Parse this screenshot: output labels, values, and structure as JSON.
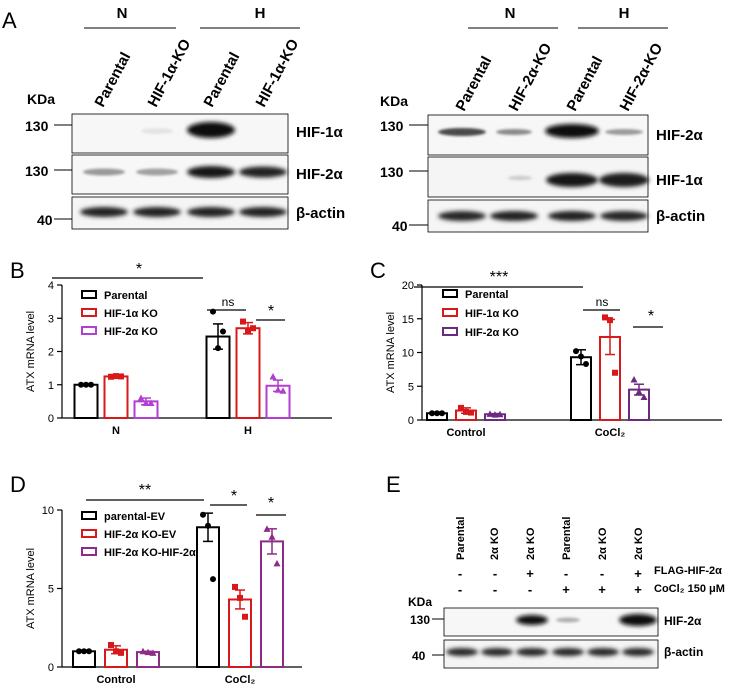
{
  "panel_a": {
    "letter": "A",
    "left": {
      "groups": [
        "N",
        "H"
      ],
      "lanes": [
        "Parental",
        "HIF-1α-KO",
        "Parental",
        "HIF-1α-KO"
      ],
      "kda_label": "KDa",
      "blots": [
        {
          "marker": "130",
          "label": "HIF-1α"
        },
        {
          "marker": "130",
          "label": "HIF-2α"
        },
        {
          "marker": "40",
          "label": "β-actin"
        }
      ]
    },
    "right": {
      "groups": [
        "N",
        "H"
      ],
      "lanes": [
        "Parental",
        "HIF-2α-KO",
        "Parental",
        "HIF-2α-KO"
      ],
      "kda_label": "KDa",
      "blots": [
        {
          "marker": "130",
          "label": "HIF-2α"
        },
        {
          "marker": "130",
          "label": "HIF-1α"
        },
        {
          "marker": "40",
          "label": "β-actin"
        }
      ]
    }
  },
  "chart_data": [
    {
      "panel": "B",
      "type": "bar",
      "ylabel": "ATX mRNA level",
      "ylim": [
        0,
        4
      ],
      "yticks": [
        "0",
        "1",
        "2",
        "3",
        "4"
      ],
      "groups": [
        "N",
        "H"
      ],
      "series": [
        {
          "name": "Parental",
          "color": "#000000",
          "values": [
            1.0,
            2.45
          ],
          "errors": [
            0.02,
            0.38
          ],
          "points": [
            [
              1.0,
              1.0,
              1.0
            ],
            [
              3.2,
              2.1,
              2.6
            ]
          ]
        },
        {
          "name": "HIF-1α KO",
          "color": "#d7191c",
          "values": [
            1.25,
            2.7
          ],
          "errors": [
            0.03,
            0.17
          ],
          "points": [
            [
              1.24,
              1.26,
              1.25
            ],
            [
              2.9,
              2.6,
              2.7
            ]
          ]
        },
        {
          "name": "HIF-2α KO",
          "color": "#b23fd1",
          "values": [
            0.5,
            0.97
          ],
          "errors": [
            0.1,
            0.17
          ],
          "points": [
            [
              0.6,
              0.45,
              0.45
            ],
            [
              1.25,
              0.85,
              0.82
            ]
          ]
        }
      ],
      "significance": [
        {
          "text": "*"
        },
        {
          "text": "ns"
        },
        {
          "text": "*"
        }
      ]
    },
    {
      "panel": "C",
      "type": "bar",
      "ylabel": "ATX mRNA level",
      "ylim": [
        0,
        20
      ],
      "yticks": [
        "0",
        "5",
        "10",
        "15",
        "20"
      ],
      "groups": [
        "Control",
        "CoCl₂"
      ],
      "series": [
        {
          "name": "Parental",
          "color": "#000000",
          "values": [
            1.0,
            9.3
          ],
          "errors": [
            0.05,
            1.1
          ],
          "points": [
            [
              1.0,
              1.0,
              1.0
            ],
            [
              10.2,
              9.4,
              8.3
            ]
          ]
        },
        {
          "name": "HIF-1α KO",
          "color": "#d7191c",
          "values": [
            1.4,
            12.3
          ],
          "errors": [
            0.4,
            2.6
          ],
          "points": [
            [
              1.8,
              1.2,
              1.1
            ],
            [
              15.2,
              14.8,
              7.0
            ]
          ]
        },
        {
          "name": "HIF-2α KO",
          "color": "#6b2a7f",
          "values": [
            0.85,
            4.5
          ],
          "errors": [
            0.1,
            0.8
          ],
          "points": [
            [
              0.9,
              0.8,
              0.85
            ],
            [
              6.0,
              4.2,
              3.4
            ]
          ]
        }
      ],
      "significance": [
        {
          "text": "***"
        },
        {
          "text": "ns"
        },
        {
          "text": "*"
        }
      ]
    },
    {
      "panel": "D",
      "type": "bar",
      "ylabel": "ATX mRNA level",
      "ylim": [
        0,
        10
      ],
      "yticks": [
        "0",
        "5",
        "10"
      ],
      "groups": [
        "Control",
        "CoCl₂"
      ],
      "series": [
        {
          "name": "parental-EV",
          "color": "#000000",
          "values": [
            1.0,
            8.9
          ],
          "errors": [
            0.03,
            0.9
          ],
          "points": [
            [
              1.0,
              1.0,
              1.0
            ],
            [
              9.7,
              9.0,
              5.6
            ]
          ]
        },
        {
          "name": "HIF-2α KO-EV",
          "color": "#d7191c",
          "values": [
            1.1,
            4.3
          ],
          "errors": [
            0.25,
            0.6
          ],
          "points": [
            [
              1.4,
              1.0,
              0.9
            ],
            [
              5.1,
              4.4,
              3.2
            ]
          ]
        },
        {
          "name": "HIF-2α KO-HIF-2α",
          "color": "#8e2b87",
          "values": [
            0.95,
            8.0
          ],
          "errors": [
            0.05,
            0.8
          ],
          "points": [
            [
              1.0,
              0.95,
              0.9
            ],
            [
              8.8,
              8.3,
              6.6
            ]
          ]
        }
      ],
      "significance": [
        {
          "text": "**"
        },
        {
          "text": "*"
        },
        {
          "text": "*"
        }
      ]
    }
  ],
  "panel_e": {
    "letter": "E",
    "lanes": [
      "Parental",
      "2α KO",
      "2α KO",
      "Parental",
      "2α KO",
      "2α KO"
    ],
    "rows": [
      {
        "label": "FLAG-HIF-2α",
        "signs": [
          "-",
          "-",
          "+",
          "-",
          "-",
          "+"
        ]
      },
      {
        "label": "CoCl₂ 150 μM",
        "signs": [
          "-",
          "-",
          "-",
          "+",
          "+",
          "+"
        ]
      }
    ],
    "kda_label": "KDa",
    "blots": [
      {
        "marker": "130",
        "label": "HIF-2α"
      },
      {
        "marker": "40",
        "label": "β-actin"
      }
    ]
  }
}
